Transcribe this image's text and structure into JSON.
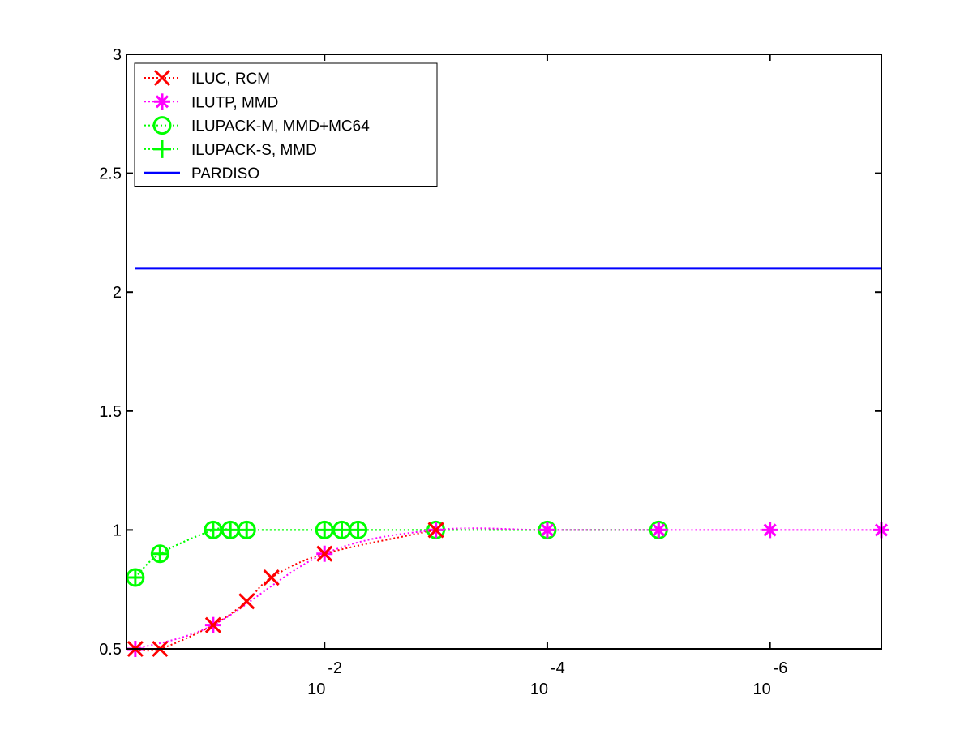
{
  "chart_data": {
    "type": "line",
    "title": "",
    "xlabel": "",
    "ylabel": "",
    "x_scale": "log-reversed",
    "xlim": [
      0.6,
      1e-07
    ],
    "ylim": [
      0.5,
      3
    ],
    "yticks": [
      "0.5",
      "1",
      "1.5",
      "2",
      "2.5",
      "3"
    ],
    "xticks": [
      {
        "base": "10",
        "exp": "-2",
        "value": 0.01
      },
      {
        "base": "10",
        "exp": "-4",
        "value": 0.0001
      },
      {
        "base": "10",
        "exp": "-6",
        "value": 1e-06
      }
    ],
    "legend_position": "top-left",
    "series": [
      {
        "name": "ILUC, RCM",
        "color": "#ff0000",
        "line": "dotted",
        "marker": "x",
        "points": [
          [
            0.5,
            0.5
          ],
          [
            0.3,
            0.5
          ],
          [
            0.1,
            0.6
          ],
          [
            0.05,
            0.7
          ],
          [
            0.03,
            0.8
          ],
          [
            0.01,
            0.9
          ],
          [
            0.001,
            1.0
          ]
        ]
      },
      {
        "name": "ILUTP, MMD",
        "color": "#ff00ff",
        "line": "dotted",
        "marker": "asterisk",
        "points": [
          [
            0.5,
            0.5
          ],
          [
            0.1,
            0.6
          ],
          [
            0.01,
            0.9
          ],
          [
            0.001,
            1.0
          ],
          [
            0.0001,
            1.0
          ],
          [
            1e-05,
            1.0
          ],
          [
            1e-06,
            1.0
          ],
          [
            1e-07,
            1.0
          ]
        ]
      },
      {
        "name": "ILUPACK-M, MMD+MC64",
        "color": "#00ff00",
        "line": "dotted",
        "marker": "circle",
        "points": [
          [
            0.5,
            0.8
          ],
          [
            0.3,
            0.9
          ],
          [
            0.1,
            1.0
          ],
          [
            0.07,
            1.0
          ],
          [
            0.05,
            1.0
          ],
          [
            0.01,
            1.0
          ],
          [
            0.007,
            1.0
          ],
          [
            0.005,
            1.0
          ],
          [
            0.001,
            1.0
          ],
          [
            0.0001,
            1.0
          ],
          [
            1e-05,
            1.0
          ]
        ]
      },
      {
        "name": "ILUPACK-S, MMD",
        "color": "#00ff00",
        "line": "dotted",
        "marker": "plus",
        "points": [
          [
            0.5,
            0.8
          ],
          [
            0.3,
            0.9
          ],
          [
            0.1,
            1.0
          ],
          [
            0.07,
            1.0
          ],
          [
            0.05,
            1.0
          ],
          [
            0.01,
            1.0
          ],
          [
            0.007,
            1.0
          ],
          [
            0.005,
            1.0
          ],
          [
            0.001,
            1.0
          ],
          [
            0.0001,
            1.0
          ],
          [
            1e-05,
            1.0
          ]
        ]
      },
      {
        "name": "PARDISO",
        "color": "#0000ff",
        "line": "solid",
        "marker": "none",
        "points": [
          [
            0.5,
            2.1
          ],
          [
            1e-07,
            2.1
          ]
        ]
      }
    ]
  }
}
